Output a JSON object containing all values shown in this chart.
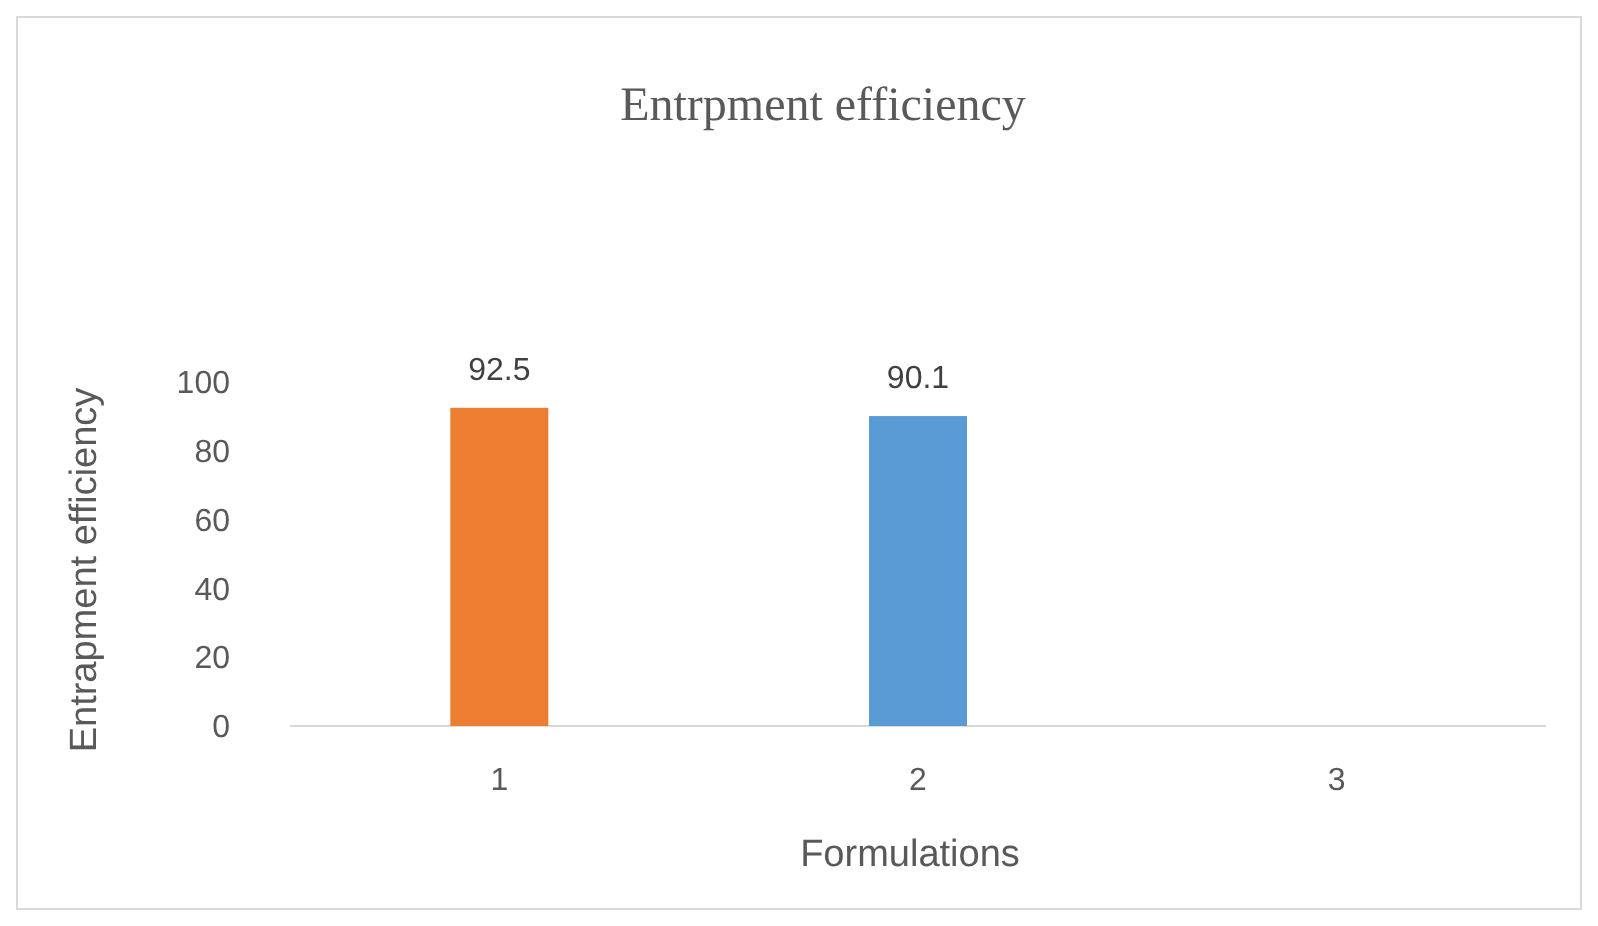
{
  "chart_data": {
    "type": "bar",
    "title": "Entrpment efficiency",
    "xlabel": "Formulations",
    "ylabel": "Entrapment efficiency",
    "categories": [
      "1",
      "2",
      "3"
    ],
    "values": [
      92.5,
      90.1,
      null
    ],
    "colors": [
      "#ed7d31",
      "#5b9bd5",
      null
    ],
    "ylim": [
      0,
      100
    ],
    "yticks": [
      0,
      20,
      40,
      60,
      80,
      100
    ],
    "data_labels": true,
    "grid": false
  }
}
